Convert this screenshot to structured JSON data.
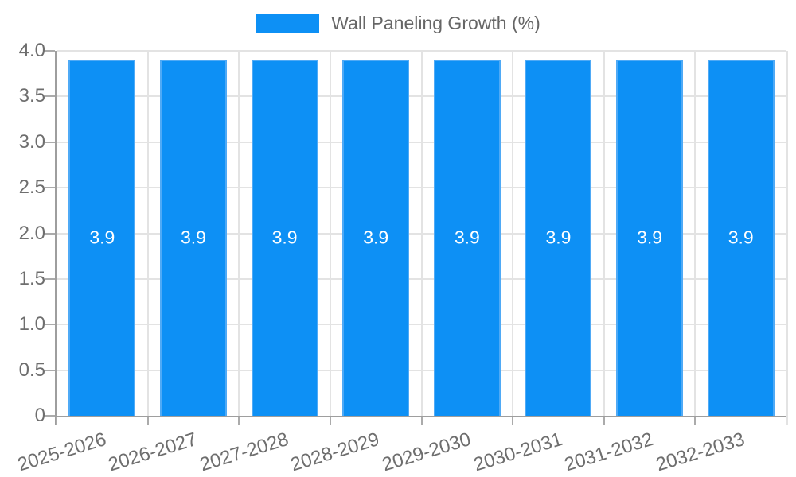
{
  "chart_data": {
    "type": "bar",
    "title": "",
    "categories": [
      "2025-2026",
      "2026-2027",
      "2027-2028",
      "2028-2029",
      "2029-2030",
      "2030-2031",
      "2031-2032",
      "2032-2033"
    ],
    "series": [
      {
        "name": "Wall Paneling Growth (%)",
        "values": [
          3.9,
          3.9,
          3.9,
          3.9,
          3.9,
          3.9,
          3.9,
          3.9
        ]
      }
    ],
    "bar_value_labels": [
      "3.9",
      "3.9",
      "3.9",
      "3.9",
      "3.9",
      "3.9",
      "3.9",
      "3.9"
    ],
    "xlabel": "",
    "ylabel": "",
    "ylim": [
      0,
      4
    ],
    "y_ticks": [
      0,
      0.5,
      1,
      1.5,
      2,
      2.5,
      3,
      3.5,
      4
    ],
    "y_tick_labels": [
      "0",
      "0.5",
      "1.0",
      "1.5",
      "2.0",
      "2.5",
      "3.0",
      "3.5",
      "4.0"
    ],
    "grid": "horizontal-and-vertical-category-boundaries",
    "legend_position": "top-center",
    "colors": {
      "bar": "#0d90f5",
      "bar_border": "#4faaf6",
      "value_label": "#ffffff",
      "axis": "#9e9e9e",
      "tick": "#ababab",
      "grid": "#e3e3e3",
      "tick_label": "#6e6e6e",
      "legend_text": "#666666",
      "background": "#ffffff"
    }
  }
}
